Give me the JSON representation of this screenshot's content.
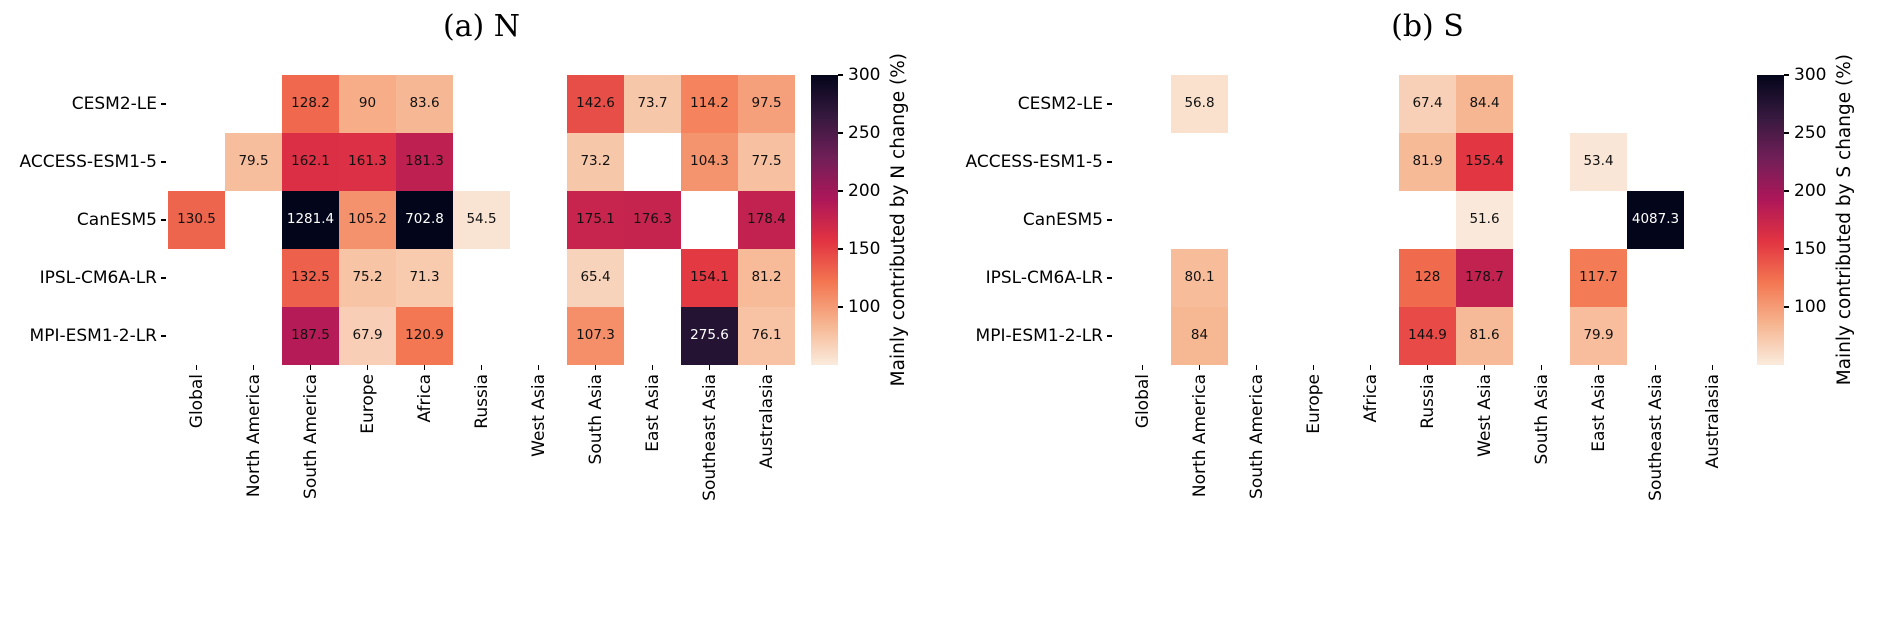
{
  "figure": {
    "background": "#ffffff"
  },
  "chart_data": [
    {
      "type": "heatmap",
      "title": "(a) N",
      "rows": [
        "CESM2-LE",
        "ACCESS-ESM1-5",
        "CanESM5",
        "IPSL-CM6A-LR",
        "MPI-ESM1-2-LR"
      ],
      "columns": [
        "Global",
        "North America",
        "South America",
        "Europe",
        "Africa",
        "Russia",
        "West Asia",
        "South Asia",
        "East Asia",
        "Southeast Asia",
        "Australasia"
      ],
      "values": [
        [
          null,
          null,
          128.2,
          90,
          83.6,
          null,
          null,
          142.6,
          73.7,
          114.2,
          97.5
        ],
        [
          null,
          79.5,
          162.1,
          161.3,
          181.3,
          null,
          null,
          73.2,
          null,
          104.3,
          77.5
        ],
        [
          130.5,
          null,
          1281.4,
          105.2,
          702.8,
          54.5,
          null,
          175.1,
          176.3,
          null,
          178.4
        ],
        [
          null,
          null,
          132.5,
          75.2,
          71.3,
          null,
          null,
          65.4,
          null,
          154.1,
          81.2
        ],
        [
          null,
          null,
          187.5,
          67.9,
          120.9,
          null,
          null,
          107.3,
          null,
          275.6,
          76.1
        ]
      ],
      "colorbar": {
        "label": "Mainly contributed by N change (%)",
        "ticks": [
          100,
          150,
          200,
          250,
          300
        ],
        "vmin": 50,
        "vmax": 300,
        "position": "right"
      },
      "colormap": "rocket_r",
      "grid": false
    },
    {
      "type": "heatmap",
      "title": "(b) S",
      "rows": [
        "CESM2-LE",
        "ACCESS-ESM1-5",
        "CanESM5",
        "IPSL-CM6A-LR",
        "MPI-ESM1-2-LR"
      ],
      "columns": [
        "Global",
        "North America",
        "South America",
        "Europe",
        "Africa",
        "Russia",
        "West Asia",
        "South Asia",
        "East Asia",
        "Southeast Asia",
        "Australasia"
      ],
      "values": [
        [
          null,
          56.8,
          null,
          null,
          null,
          67.4,
          84.4,
          null,
          null,
          null,
          null
        ],
        [
          null,
          null,
          null,
          null,
          null,
          81.9,
          155.4,
          null,
          53.4,
          null,
          null
        ],
        [
          null,
          null,
          null,
          null,
          null,
          null,
          51.6,
          null,
          null,
          4087.3,
          null
        ],
        [
          null,
          80.1,
          null,
          null,
          null,
          128,
          178.7,
          null,
          117.7,
          null,
          null
        ],
        [
          null,
          84,
          null,
          null,
          null,
          144.9,
          81.6,
          null,
          79.9,
          null,
          null
        ]
      ],
      "colorbar": {
        "label": "Mainly contributed by S change (%)",
        "ticks": [
          100,
          150,
          200,
          250,
          300
        ],
        "vmin": 50,
        "vmax": 300,
        "position": "right"
      },
      "colormap": "rocket_r",
      "grid": false
    }
  ],
  "style": {
    "colormap_stops": [
      "#FAEBDD",
      "#F6B48F",
      "#F37651",
      "#E13342",
      "#AD1759",
      "#701F57",
      "#35193E",
      "#03051A"
    ],
    "empty_cell": "#FFFFFF",
    "annotation_dark": "#111111",
    "annotation_light": "#FFFFFF",
    "tick_color": "#000000"
  }
}
